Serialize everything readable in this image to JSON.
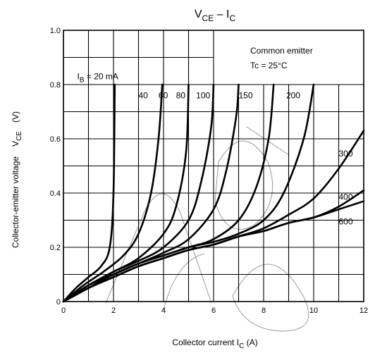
{
  "chart_data": {
    "type": "line",
    "title": {
      "main": "V",
      "sub1": "CE",
      "sep": " – I",
      "sub2": "C"
    },
    "xlabel": {
      "main": "Collector current   I",
      "sub": "C",
      "unit": "   (A)"
    },
    "ylabel": {
      "text": "Collector-emitter voltage",
      "sym": "V",
      "sub": "CE",
      "unit": "(V)"
    },
    "xlim": [
      0,
      12
    ],
    "ylim": [
      0,
      1.0
    ],
    "x_ticks": [
      "0",
      "2",
      "4",
      "6",
      "8",
      "10",
      "12"
    ],
    "y_ticks": [
      "0",
      "0.2",
      "0.4",
      "0.6",
      "0.8",
      "1.0"
    ],
    "grid": true,
    "annotation": {
      "line1": "Common emitter",
      "line2": "Tc = 25°C"
    },
    "series": [
      {
        "name": "IB = 20 mA",
        "label_main": "I",
        "label_sub": "B",
        "label_rest": " = 20 mA",
        "points": [
          [
            0,
            0
          ],
          [
            0.5,
            0.05
          ],
          [
            1.0,
            0.09
          ],
          [
            1.5,
            0.13
          ],
          [
            1.85,
            0.2
          ],
          [
            2.0,
            0.4
          ],
          [
            2.05,
            0.8
          ]
        ]
      },
      {
        "name": "40",
        "points": [
          [
            0,
            0
          ],
          [
            0.8,
            0.06
          ],
          [
            1.6,
            0.11
          ],
          [
            2.4,
            0.17
          ],
          [
            3.0,
            0.25
          ],
          [
            3.5,
            0.4
          ],
          [
            3.8,
            0.6
          ],
          [
            3.95,
            0.8
          ]
        ]
      },
      {
        "name": "60",
        "points": [
          [
            0,
            0
          ],
          [
            1,
            0.06
          ],
          [
            2,
            0.11
          ],
          [
            3,
            0.16
          ],
          [
            4,
            0.25
          ],
          [
            4.5,
            0.35
          ],
          [
            4.9,
            0.55
          ],
          [
            5.0,
            0.8
          ]
        ]
      },
      {
        "name": "80",
        "points": [
          [
            0,
            0
          ],
          [
            1,
            0.06
          ],
          [
            2,
            0.11
          ],
          [
            3,
            0.15
          ],
          [
            4,
            0.2
          ],
          [
            5,
            0.3
          ],
          [
            5.5,
            0.44
          ],
          [
            5.9,
            0.64
          ],
          [
            6.0,
            0.8
          ]
        ]
      },
      {
        "name": "100",
        "points": [
          [
            0,
            0
          ],
          [
            1,
            0.06
          ],
          [
            2,
            0.1
          ],
          [
            3,
            0.14
          ],
          [
            4,
            0.18
          ],
          [
            5,
            0.23
          ],
          [
            6,
            0.34
          ],
          [
            6.5,
            0.48
          ],
          [
            6.9,
            0.68
          ],
          [
            7.0,
            0.8
          ]
        ]
      },
      {
        "name": "150",
        "points": [
          [
            0,
            0
          ],
          [
            1,
            0.05
          ],
          [
            2,
            0.1
          ],
          [
            3,
            0.14
          ],
          [
            4,
            0.17
          ],
          [
            5,
            0.2
          ],
          [
            6,
            0.23
          ],
          [
            7,
            0.3
          ],
          [
            7.7,
            0.42
          ],
          [
            8.2,
            0.6
          ],
          [
            8.4,
            0.8
          ]
        ]
      },
      {
        "name": "200",
        "points": [
          [
            0,
            0
          ],
          [
            1,
            0.05
          ],
          [
            2,
            0.1
          ],
          [
            3,
            0.14
          ],
          [
            4,
            0.17
          ],
          [
            5,
            0.2
          ],
          [
            6,
            0.22
          ],
          [
            7,
            0.25
          ],
          [
            8,
            0.3
          ],
          [
            8.8,
            0.4
          ],
          [
            9.6,
            0.6
          ],
          [
            10.0,
            0.8
          ]
        ]
      },
      {
        "name": "300",
        "points": [
          [
            0,
            0
          ],
          [
            1,
            0.05
          ],
          [
            2,
            0.09
          ],
          [
            3,
            0.13
          ],
          [
            4,
            0.16
          ],
          [
            5,
            0.19
          ],
          [
            6,
            0.21
          ],
          [
            7,
            0.24
          ],
          [
            8,
            0.27
          ],
          [
            9,
            0.32
          ],
          [
            10,
            0.38
          ],
          [
            11,
            0.49
          ],
          [
            12,
            0.63
          ]
        ]
      },
      {
        "name": "400",
        "points": [
          [
            0,
            0
          ],
          [
            1,
            0.05
          ],
          [
            2,
            0.09
          ],
          [
            3,
            0.13
          ],
          [
            4,
            0.16
          ],
          [
            5,
            0.19
          ],
          [
            6,
            0.21
          ],
          [
            7,
            0.24
          ],
          [
            8,
            0.26
          ],
          [
            9,
            0.29
          ],
          [
            10,
            0.31
          ],
          [
            11,
            0.35
          ],
          [
            12,
            0.41
          ]
        ]
      },
      {
        "name": "600",
        "points": [
          [
            0,
            0
          ],
          [
            1,
            0.05
          ],
          [
            2,
            0.09
          ],
          [
            3,
            0.13
          ],
          [
            4,
            0.16
          ],
          [
            5,
            0.19
          ],
          [
            6,
            0.21
          ],
          [
            7,
            0.24
          ],
          [
            8,
            0.26
          ],
          [
            9,
            0.29
          ],
          [
            10,
            0.31
          ],
          [
            11,
            0.34
          ],
          [
            12,
            0.37
          ]
        ]
      }
    ]
  }
}
